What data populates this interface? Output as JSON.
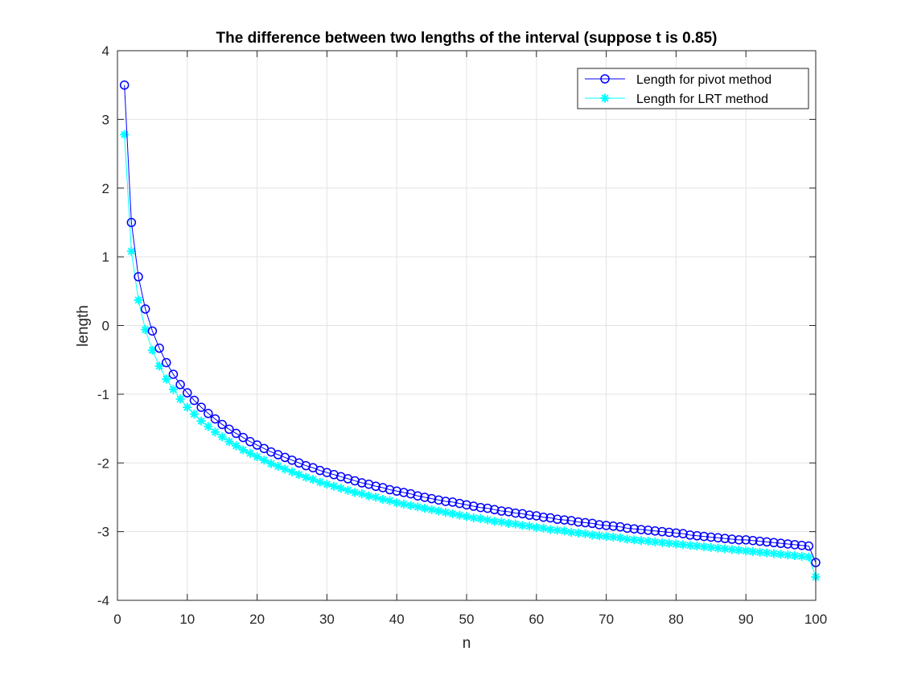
{
  "chart_data": {
    "type": "line",
    "title": "The difference between two lengths of the interval (suppose t is 0.85)",
    "xlabel": "n",
    "ylabel": "length",
    "xlim": [
      0,
      100
    ],
    "ylim": [
      -4,
      4
    ],
    "xticks": [
      0,
      10,
      20,
      30,
      40,
      50,
      60,
      70,
      80,
      90,
      100
    ],
    "yticks": [
      -4,
      -3,
      -2,
      -1,
      0,
      1,
      2,
      3,
      4
    ],
    "grid": true,
    "legend_location": "top-right",
    "x": [
      1,
      2,
      3,
      4,
      5,
      6,
      7,
      8,
      9,
      10,
      11,
      12,
      13,
      14,
      15,
      16,
      17,
      18,
      19,
      20,
      21,
      22,
      23,
      24,
      25,
      26,
      27,
      28,
      29,
      30,
      31,
      32,
      33,
      34,
      35,
      36,
      37,
      38,
      39,
      40,
      41,
      42,
      43,
      44,
      45,
      46,
      47,
      48,
      49,
      50,
      51,
      52,
      53,
      54,
      55,
      56,
      57,
      58,
      59,
      60,
      61,
      62,
      63,
      64,
      65,
      66,
      67,
      68,
      69,
      70,
      71,
      72,
      73,
      74,
      75,
      76,
      77,
      78,
      79,
      80,
      81,
      82,
      83,
      84,
      85,
      86,
      87,
      88,
      89,
      90,
      91,
      92,
      93,
      94,
      95,
      96,
      97,
      98,
      99,
      100
    ],
    "series": [
      {
        "name": "Length for pivot method",
        "color": "#0000ff",
        "marker": "circle",
        "values": [
          3.5,
          1.5,
          0.71,
          0.24,
          -0.08,
          -0.33,
          -0.54,
          -0.71,
          -0.86,
          -0.98,
          -1.09,
          -1.19,
          -1.28,
          -1.36,
          -1.44,
          -1.51,
          -1.57,
          -1.63,
          -1.69,
          -1.74,
          -1.79,
          -1.84,
          -1.88,
          -1.92,
          -1.96,
          -2.0,
          -2.04,
          -2.07,
          -2.11,
          -2.14,
          -2.17,
          -2.2,
          -2.23,
          -2.26,
          -2.29,
          -2.31,
          -2.34,
          -2.36,
          -2.39,
          -2.41,
          -2.43,
          -2.45,
          -2.48,
          -2.5,
          -2.52,
          -2.54,
          -2.56,
          -2.57,
          -2.59,
          -2.61,
          -2.63,
          -2.65,
          -2.66,
          -2.68,
          -2.7,
          -2.71,
          -2.73,
          -2.74,
          -2.76,
          -2.77,
          -2.79,
          -2.8,
          -2.82,
          -2.83,
          -2.84,
          -2.86,
          -2.87,
          -2.88,
          -2.9,
          -2.91,
          -2.92,
          -2.93,
          -2.95,
          -2.96,
          -2.97,
          -2.98,
          -2.99,
          -3.0,
          -3.01,
          -3.02,
          -3.03,
          -3.05,
          -3.06,
          -3.07,
          -3.08,
          -3.09,
          -3.1,
          -3.11,
          -3.12,
          -3.12,
          -3.13,
          -3.14,
          -3.15,
          -3.16,
          -3.17,
          -3.18,
          -3.19,
          -3.2,
          -3.21,
          -3.45
        ]
      },
      {
        "name": "Length for LRT method",
        "color": "#00ffff",
        "marker": "asterisk",
        "values": [
          2.78,
          1.08,
          0.37,
          -0.06,
          -0.36,
          -0.59,
          -0.78,
          -0.93,
          -1.07,
          -1.19,
          -1.29,
          -1.39,
          -1.47,
          -1.55,
          -1.62,
          -1.69,
          -1.75,
          -1.81,
          -1.86,
          -1.91,
          -1.96,
          -2.01,
          -2.05,
          -2.09,
          -2.13,
          -2.17,
          -2.21,
          -2.24,
          -2.28,
          -2.31,
          -2.34,
          -2.37,
          -2.4,
          -2.43,
          -2.45,
          -2.48,
          -2.5,
          -2.53,
          -2.55,
          -2.58,
          -2.6,
          -2.62,
          -2.64,
          -2.66,
          -2.68,
          -2.7,
          -2.72,
          -2.74,
          -2.76,
          -2.78,
          -2.8,
          -2.81,
          -2.83,
          -2.85,
          -2.86,
          -2.88,
          -2.89,
          -2.91,
          -2.92,
          -2.94,
          -2.95,
          -2.97,
          -2.98,
          -2.99,
          -3.01,
          -3.02,
          -3.03,
          -3.05,
          -3.06,
          -3.07,
          -3.08,
          -3.09,
          -3.11,
          -3.12,
          -3.13,
          -3.14,
          -3.15,
          -3.16,
          -3.17,
          -3.18,
          -3.19,
          -3.2,
          -3.21,
          -3.22,
          -3.23,
          -3.24,
          -3.25,
          -3.26,
          -3.27,
          -3.28,
          -3.29,
          -3.3,
          -3.31,
          -3.32,
          -3.33,
          -3.34,
          -3.35,
          -3.36,
          -3.37,
          -3.66
        ]
      }
    ]
  }
}
